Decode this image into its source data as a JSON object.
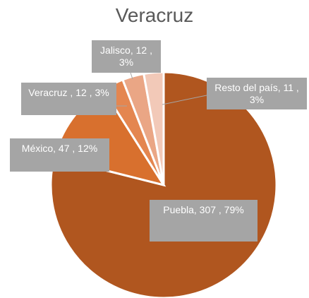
{
  "chart_data": {
    "type": "pie",
    "title": "Veracruz",
    "categories": [
      "Puebla",
      "México",
      "Veracruz",
      "Jalisco",
      "Resto del país"
    ],
    "values": [
      307,
      47,
      12,
      12,
      11
    ],
    "value_labels": [
      "Puebla, 307 , 79%",
      "México, 47 , 12%",
      "Veracruz , 12 , 3%",
      "Jalisco, 12 , 3%",
      "Resto del país, 11 , 3%"
    ],
    "colors": [
      "#b0561f",
      "#d8702e",
      "#e48650",
      "#eaa685",
      "#f2c9b8"
    ]
  }
}
